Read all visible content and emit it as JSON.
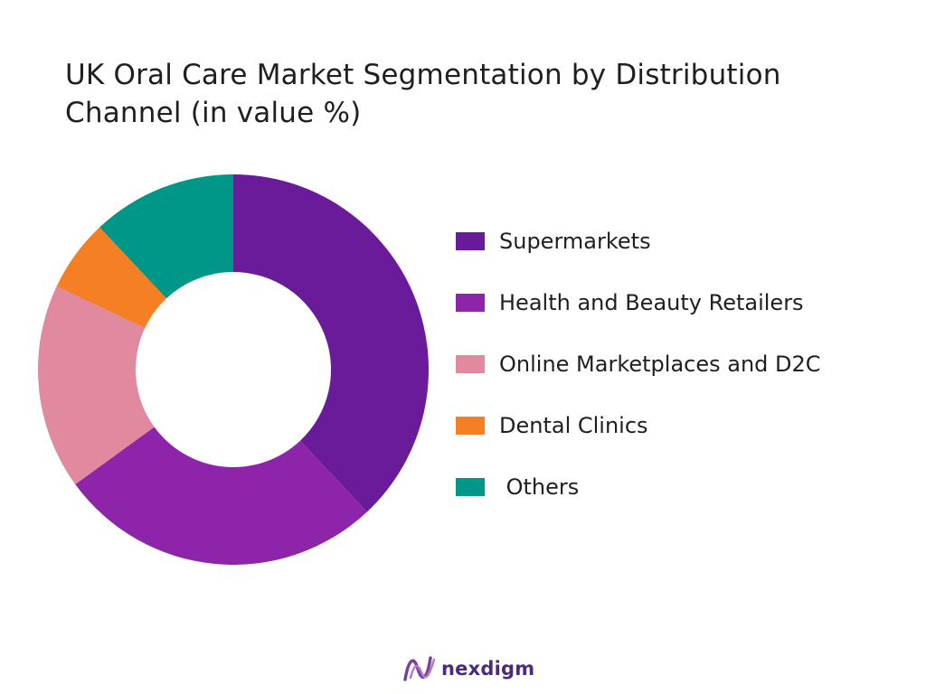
{
  "chart_data": {
    "type": "pie",
    "donut": true,
    "title": "UK Oral Care Market Segmentation by Distribution Channel (in value %)",
    "unit": "%",
    "legend_position": "right",
    "categories": [
      "Supermarkets",
      "Health and Beauty Retailers",
      "Online Marketplaces and D2C",
      "Dental Clinics",
      " Others"
    ],
    "values": [
      38,
      27,
      17,
      6,
      12
    ],
    "colors": [
      "#6a1b9a",
      "#8e24aa",
      "#e0899f",
      "#f57f25",
      "#009688"
    ]
  },
  "brand": {
    "name": "nexdigm",
    "logo_color": "#7b3fa0"
  }
}
